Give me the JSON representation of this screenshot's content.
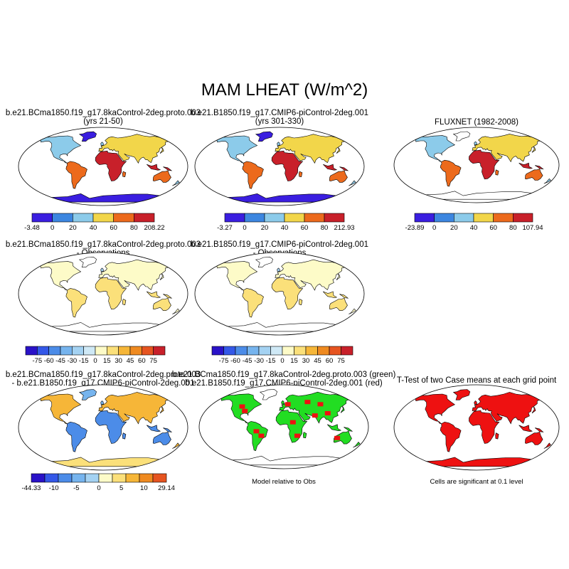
{
  "title": "MAM LHEAT (W/m^2)",
  "panels": [
    {
      "id": "p1",
      "line1": "b.e21.BCma1850.f19_g17.8kaControl-2deg.proto.003",
      "line2": "(yrs 21-50)",
      "colorbar": {
        "colors": [
          "#3a1ee0",
          "#3c86e0",
          "#8ccbea",
          "#f2d64a",
          "#ec6a1c",
          "#c8202a"
        ],
        "labels": [
          "-3.48",
          "0",
          "20",
          "40",
          "60",
          "80",
          "208.22"
        ]
      }
    },
    {
      "id": "p2",
      "line1": "b.e21.B1850.f19_g17.CMIP6-piControl-2deg.001",
      "line2": "(yrs 301-330)",
      "colorbar": {
        "colors": [
          "#3a1ee0",
          "#3c86e0",
          "#8ccbea",
          "#f2d64a",
          "#ec6a1c",
          "#c8202a"
        ],
        "labels": [
          "-3.27",
          "0",
          "20",
          "40",
          "60",
          "80",
          "212.93"
        ]
      }
    },
    {
      "id": "p3",
      "line1": "FLUXNET (1982-2008)",
      "line2": "",
      "colorbar": {
        "colors": [
          "#3a1ee0",
          "#3c86e0",
          "#8ccbea",
          "#f2d64a",
          "#ec6a1c",
          "#c8202a"
        ],
        "labels": [
          "-23.89",
          "0",
          "20",
          "40",
          "60",
          "80",
          "107.94"
        ]
      }
    },
    {
      "id": "p4",
      "line1": "b.e21.BCma1850.f19_g17.8kaControl-2deg.proto.003",
      "line2": "- Observations",
      "colorbar": {
        "colors": [
          "#2a12c8",
          "#3458e8",
          "#4c8ce8",
          "#76b4ee",
          "#a4d2f2",
          "#cfe9f6",
          "#fdfbc8",
          "#fbe07a",
          "#f6b638",
          "#ef8a20",
          "#e65420",
          "#c8202a"
        ],
        "labels": [
          "-75",
          "-60",
          "-45",
          "-30",
          "-15",
          "0",
          "15",
          "30",
          "45",
          "60",
          "75"
        ]
      }
    },
    {
      "id": "p5",
      "line1": "b.e21.B1850.f19_g17.CMIP6-piControl-2deg.001",
      "line2": "- Observations",
      "colorbar": {
        "colors": [
          "#2a12c8",
          "#3458e8",
          "#4c8ce8",
          "#76b4ee",
          "#a4d2f2",
          "#cfe9f6",
          "#fdfbc8",
          "#fbe07a",
          "#f6b638",
          "#ef8a20",
          "#e65420",
          "#c8202a"
        ],
        "labels": [
          "-75",
          "-60",
          "-45",
          "-30",
          "-15",
          "0",
          "15",
          "30",
          "45",
          "60",
          "75"
        ]
      }
    },
    {
      "id": "p7",
      "line1": "b.e21.BCma1850.f19_g17.8kaControl-2deg.proto.003",
      "line2": "- b.e21.B1850.f19_g17.CMIP6-piControl-2deg.001",
      "colorbar": {
        "colors": [
          "#2a12c8",
          "#3458e8",
          "#4c8ce8",
          "#76b4ee",
          "#a4d2f2",
          "#fdfbc8",
          "#fbe07a",
          "#f6b638",
          "#ef8a20",
          "#e65420"
        ],
        "labels": [
          "-44.33",
          "-10",
          "-5",
          "0",
          "5",
          "10",
          "29.14"
        ]
      }
    },
    {
      "id": "p8",
      "line1": "b.e21.BCma1850.f19_g17.8kaControl-2deg.proto.003 (green)",
      "line2": "b.e21.B1850.f19_g17.CMIP6-piControl-2deg.001 (red)",
      "note": "Model relative to Obs"
    },
    {
      "id": "p9",
      "line1": "T-Test of two Case means at each grid point",
      "line2": "",
      "note": "Cells are significant at 0.1 level"
    }
  ],
  "colors": {
    "ocean": "#ffffff",
    "outline": "#000000",
    "blue": "#3c86e0",
    "lightblue": "#8ccbea",
    "yellow": "#f2d64a",
    "orange": "#ec6a1c",
    "red": "#c8202a",
    "purple": "#3a1ee0",
    "green": "#22dd22",
    "sigred": "#ee1111"
  }
}
